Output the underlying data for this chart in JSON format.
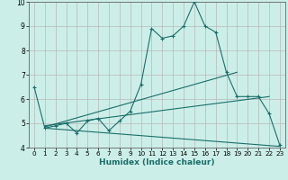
{
  "xlabel": "Humidex (Indice chaleur)",
  "bg_color": "#cceee8",
  "grid_color": "#b8b8b8",
  "line_color": "#1a6e6a",
  "xlim": [
    -0.5,
    23.5
  ],
  "ylim": [
    4,
    10
  ],
  "yticks": [
    4,
    5,
    6,
    7,
    8,
    9,
    10
  ],
  "xticks": [
    0,
    1,
    2,
    3,
    4,
    5,
    6,
    7,
    8,
    9,
    10,
    11,
    12,
    13,
    14,
    15,
    16,
    17,
    18,
    19,
    20,
    21,
    22,
    23
  ],
  "line1_x": [
    0,
    1,
    2,
    3,
    4,
    5,
    6,
    7,
    8,
    9,
    10,
    11,
    12,
    13,
    14,
    15,
    16,
    17,
    18,
    19,
    20,
    21,
    22,
    23
  ],
  "line1_y": [
    6.5,
    4.8,
    4.9,
    5.0,
    4.6,
    5.1,
    5.2,
    4.7,
    5.1,
    5.5,
    6.6,
    8.9,
    8.5,
    8.6,
    9.0,
    10.0,
    9.0,
    8.75,
    7.1,
    6.1,
    6.1,
    6.1,
    5.4,
    4.1
  ],
  "line2_x": [
    1,
    23
  ],
  "line2_y": [
    4.8,
    4.05
  ],
  "line3_x": [
    1,
    22
  ],
  "line3_y": [
    4.9,
    6.1
  ],
  "line4_x": [
    1,
    19
  ],
  "line4_y": [
    4.85,
    7.1
  ]
}
